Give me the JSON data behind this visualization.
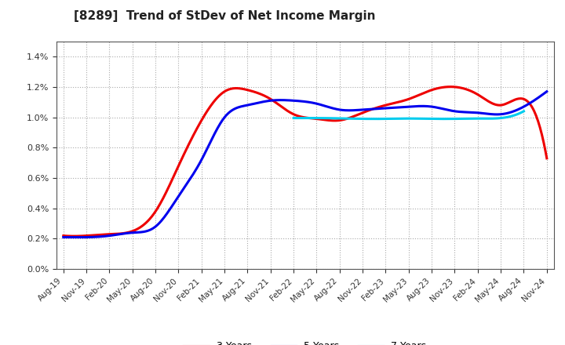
{
  "title": "[8289]  Trend of StDev of Net Income Margin",
  "title_fontsize": 11,
  "ylim": [
    0.0,
    0.015
  ],
  "yticks": [
    0.0,
    0.002,
    0.004,
    0.006,
    0.008,
    0.01,
    0.012,
    0.014
  ],
  "background_color": "#ffffff",
  "plot_bg_color": "#ffffff",
  "grid_color": "#aaaaaa",
  "series": {
    "3 Years": {
      "color": "#ee0000",
      "data": [
        [
          "Aug-19",
          0.0022
        ],
        [
          "Nov-19",
          0.0022
        ],
        [
          "Feb-20",
          0.0023
        ],
        [
          "May-20",
          0.0025
        ],
        [
          "Aug-20",
          0.0038
        ],
        [
          "Nov-20",
          0.0068
        ],
        [
          "Feb-21",
          0.0098
        ],
        [
          "May-21",
          0.0117
        ],
        [
          "Aug-21",
          0.0118
        ],
        [
          "Nov-21",
          0.0112
        ],
        [
          "Feb-22",
          0.0102
        ],
        [
          "May-22",
          0.0099
        ],
        [
          "Aug-22",
          0.0098
        ],
        [
          "Nov-22",
          0.0103
        ],
        [
          "Feb-23",
          0.0108
        ],
        [
          "May-23",
          0.0112
        ],
        [
          "Aug-23",
          0.0118
        ],
        [
          "Nov-23",
          0.012
        ],
        [
          "Feb-24",
          0.0115
        ],
        [
          "May-24",
          0.0108
        ],
        [
          "Aug-24",
          0.0112
        ],
        [
          "Nov-24",
          0.0073
        ]
      ]
    },
    "5 Years": {
      "color": "#0000ee",
      "data": [
        [
          "Aug-19",
          0.0021
        ],
        [
          "Nov-19",
          0.0021
        ],
        [
          "Feb-20",
          0.0022
        ],
        [
          "May-20",
          0.0024
        ],
        [
          "Aug-20",
          0.0028
        ],
        [
          "Nov-20",
          0.0048
        ],
        [
          "Feb-21",
          0.0072
        ],
        [
          "May-21",
          0.01
        ],
        [
          "Aug-21",
          0.0108
        ],
        [
          "Nov-21",
          0.0111
        ],
        [
          "Feb-22",
          0.0111
        ],
        [
          "May-22",
          0.0109
        ],
        [
          "Aug-22",
          0.0105
        ],
        [
          "Nov-22",
          0.0105
        ],
        [
          "Feb-23",
          0.0106
        ],
        [
          "May-23",
          0.0107
        ],
        [
          "Aug-23",
          0.0107
        ],
        [
          "Nov-23",
          0.0104
        ],
        [
          "Feb-24",
          0.0103
        ],
        [
          "May-24",
          0.0102
        ],
        [
          "Aug-24",
          0.0107
        ],
        [
          "Nov-24",
          0.0117
        ]
      ]
    },
    "7 Years": {
      "color": "#00ccee",
      "data": [
        [
          "Aug-19",
          null
        ],
        [
          "Nov-19",
          null
        ],
        [
          "Feb-20",
          null
        ],
        [
          "May-20",
          null
        ],
        [
          "Aug-20",
          null
        ],
        [
          "Nov-20",
          null
        ],
        [
          "Feb-21",
          null
        ],
        [
          "May-21",
          null
        ],
        [
          "Aug-21",
          null
        ],
        [
          "Nov-21",
          null
        ],
        [
          "Feb-22",
          0.00995
        ],
        [
          "May-22",
          0.00995
        ],
        [
          "Aug-22",
          0.00993
        ],
        [
          "Nov-22",
          0.0099
        ],
        [
          "Feb-23",
          0.0099
        ],
        [
          "May-23",
          0.00992
        ],
        [
          "Aug-23",
          0.0099
        ],
        [
          "Nov-23",
          0.0099
        ],
        [
          "Feb-24",
          0.00992
        ],
        [
          "May-24",
          0.00995
        ],
        [
          "Aug-24",
          0.0104
        ],
        [
          "Nov-24",
          null
        ]
      ]
    },
    "10 Years": {
      "color": "#008800",
      "data": [
        [
          "Aug-19",
          null
        ],
        [
          "Nov-19",
          null
        ],
        [
          "Feb-20",
          null
        ],
        [
          "May-20",
          null
        ],
        [
          "Aug-20",
          null
        ],
        [
          "Nov-20",
          null
        ],
        [
          "Feb-21",
          null
        ],
        [
          "May-21",
          null
        ],
        [
          "Aug-21",
          null
        ],
        [
          "Nov-21",
          null
        ],
        [
          "Feb-22",
          null
        ],
        [
          "May-22",
          null
        ],
        [
          "Aug-22",
          null
        ],
        [
          "Nov-22",
          null
        ],
        [
          "Feb-23",
          null
        ],
        [
          "May-23",
          null
        ],
        [
          "Aug-23",
          null
        ],
        [
          "Nov-23",
          null
        ],
        [
          "Feb-24",
          null
        ],
        [
          "May-24",
          null
        ],
        [
          "Aug-24",
          null
        ],
        [
          "Nov-24",
          null
        ]
      ]
    }
  },
  "x_labels": [
    "Aug-19",
    "Nov-19",
    "Feb-20",
    "May-20",
    "Aug-20",
    "Nov-20",
    "Feb-21",
    "May-21",
    "Aug-21",
    "Nov-21",
    "Feb-22",
    "May-22",
    "Aug-22",
    "Nov-22",
    "Feb-23",
    "May-23",
    "Aug-23",
    "Nov-23",
    "Feb-24",
    "May-24",
    "Aug-24",
    "Nov-24"
  ],
  "legend_ncol": 4
}
